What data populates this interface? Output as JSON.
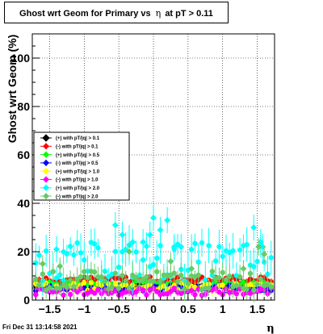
{
  "title": {
    "prefix": "Ghost wrt Geom for Primary vs",
    "symbol": "η",
    "suffix": "at pT > 0.11"
  },
  "timestamp": "Fri Dec 31 13:14:58 2021",
  "chart_data": {
    "type": "scatter",
    "xlabel": "η",
    "ylabel": "Ghost wrt Geom (%)",
    "xlim": [
      -1.75,
      1.75
    ],
    "ylim": [
      0,
      110
    ],
    "x_ticks": [
      {
        "value": -1.5,
        "label": "−1.5"
      },
      {
        "value": -1.0,
        "label": "−1"
      },
      {
        "value": -0.5,
        "label": "−0.5"
      },
      {
        "value": 0,
        "label": "0"
      },
      {
        "value": 0.5,
        "label": "0.5"
      },
      {
        "value": 1.0,
        "label": "1"
      },
      {
        "value": 1.5,
        "label": "1.5"
      }
    ],
    "y_ticks": [
      {
        "value": 0,
        "label": "0"
      },
      {
        "value": 20,
        "label": "20"
      },
      {
        "value": 40,
        "label": "40"
      },
      {
        "value": 60,
        "label": "60"
      },
      {
        "value": 80,
        "label": "80"
      },
      {
        "value": 100,
        "label": "100"
      }
    ],
    "grid": true,
    "legend_position": "middle-left",
    "series": [
      {
        "name": "(+) with pT/|q| > 0.1",
        "color": "#000000",
        "level": 6.0,
        "amp": 1.0,
        "err": 1.0
      },
      {
        "name": "(-) with pT/|q| > 0.1",
        "color": "#ff0000",
        "level": 8.5,
        "amp": 1.2,
        "err": 1.2
      },
      {
        "name": "(+) with pT/|q| > 0.5",
        "color": "#00ff00",
        "level": 6.5,
        "amp": 1.5,
        "err": 1.5
      },
      {
        "name": "(-) with pT/|q| > 0.5",
        "color": "#0000ff",
        "level": 5.0,
        "amp": 1.2,
        "err": 1.2
      },
      {
        "name": "(+) with pT/|q| > 1.0",
        "color": "#ffff00",
        "level": 5.5,
        "amp": 1.8,
        "err": 2.0
      },
      {
        "name": "(-) with pT/|q| > 1.0",
        "color": "#ff00ff",
        "level": 3.5,
        "amp": 1.5,
        "err": 1.5
      },
      {
        "name": "(+) with pT/|q| > 2.0",
        "color": "#00ffff",
        "level": 16.0,
        "amp": 8.0,
        "err": 6.0
      },
      {
        "name": "(-) with pT/|q| > 2.0",
        "color": "#66cc66",
        "level": 8.0,
        "amp": 4.0,
        "err": 4.0
      }
    ],
    "highlight_points": [
      {
        "series": 6,
        "x": -1.4,
        "y": 21
      },
      {
        "series": 6,
        "x": -1.3,
        "y": 20
      },
      {
        "series": 6,
        "x": -0.55,
        "y": 31
      },
      {
        "series": 6,
        "x": -0.45,
        "y": 27
      },
      {
        "series": 6,
        "x": -0.3,
        "y": 24
      },
      {
        "series": 6,
        "x": -0.15,
        "y": 24
      },
      {
        "series": 6,
        "x": -0.05,
        "y": 27
      },
      {
        "series": 6,
        "x": 0.0,
        "y": 34
      },
      {
        "series": 6,
        "x": 0.1,
        "y": 29
      },
      {
        "series": 6,
        "x": 0.2,
        "y": 33
      },
      {
        "series": 6,
        "x": 0.3,
        "y": 22
      },
      {
        "series": 6,
        "x": 0.4,
        "y": 22
      },
      {
        "series": 6,
        "x": 1.45,
        "y": 30
      },
      {
        "series": 6,
        "x": 1.55,
        "y": 24
      },
      {
        "series": 6,
        "x": 1.58,
        "y": 22
      },
      {
        "series": 7,
        "x": -1.6,
        "y": 15
      },
      {
        "series": 7,
        "x": -1.35,
        "y": 14
      },
      {
        "series": 7,
        "x": -0.35,
        "y": 20
      },
      {
        "series": 7,
        "x": 0.25,
        "y": 16
      },
      {
        "series": 7,
        "x": 0.55,
        "y": 13
      },
      {
        "series": 7,
        "x": 1.3,
        "y": 13
      },
      {
        "series": 7,
        "x": 1.52,
        "y": 22
      },
      {
        "series": 7,
        "x": 1.6,
        "y": 19
      }
    ]
  }
}
